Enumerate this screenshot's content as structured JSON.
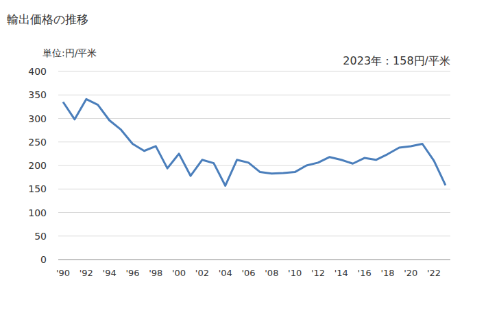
{
  "chart_data": {
    "type": "line",
    "title": "輸出価格の推移",
    "y_label": "単位:円/平米",
    "annotation": "2023年：158円/平米",
    "categories": [
      "'90",
      null,
      "'92",
      null,
      "'94",
      null,
      "'96",
      null,
      "'98",
      null,
      "'00",
      null,
      "'02",
      null,
      "'04",
      null,
      "'06",
      null,
      "'08",
      null,
      "'10",
      null,
      "'12",
      null,
      "'14",
      null,
      "'16",
      null,
      "'18",
      null,
      "'20",
      null,
      "'22",
      null
    ],
    "values": [
      335,
      298,
      341,
      329,
      296,
      276,
      246,
      231,
      241,
      194,
      225,
      178,
      212,
      205,
      157,
      212,
      206,
      186,
      183,
      184,
      186,
      200,
      206,
      218,
      212,
      204,
      216,
      212,
      224,
      238,
      241,
      246,
      210,
      158
    ],
    "color": "#4a7ebb",
    "ylim": [
      0,
      400
    ],
    "yticks": [
      0,
      50,
      100,
      150,
      200,
      250,
      300,
      350,
      400
    ],
    "grid": true
  }
}
